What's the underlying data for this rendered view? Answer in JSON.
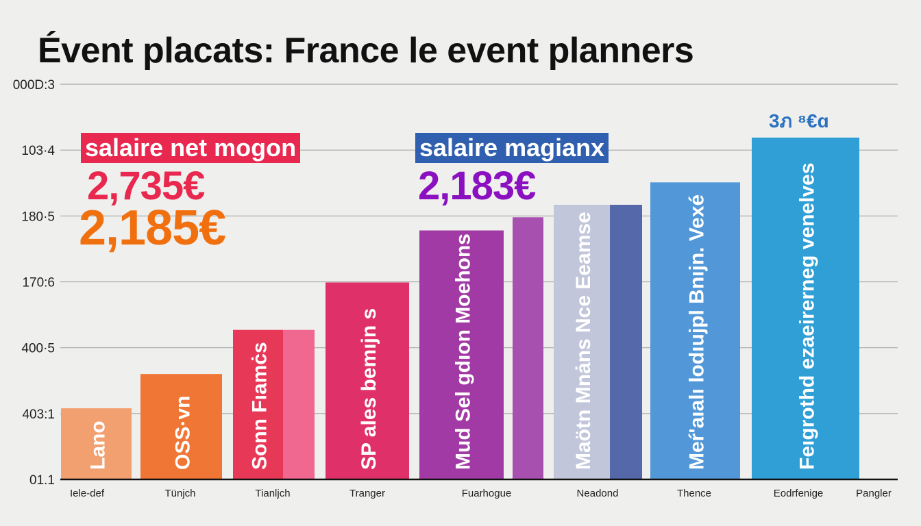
{
  "title": "Évent placats: France le event planners",
  "annotations": {
    "label_left": "salaire net mogon",
    "label_left_color": "#e8284e",
    "value_red": "2,735€",
    "value_red_color": "#e8284e",
    "value_orange": "2,185€",
    "value_orange_color": "#f07010",
    "label_right": "salaire magianx",
    "label_right_color": "#2f5fae",
    "value_purple": "2,183€",
    "value_purple_color": "#8a10c0",
    "top_bar_label": "3ภ ⁸€ɑ",
    "top_bar_label_color": "#2a72c0"
  },
  "chart_data": {
    "type": "bar",
    "title": "Évent placats: France le event planners",
    "xlabel": "",
    "ylabel": "",
    "ylim": [
      0,
      6
    ],
    "y_tick_labels": [
      "01.1",
      "403:1",
      "400·5",
      "170:6",
      "180·5",
      "103·4",
      "000D:3"
    ],
    "grid": true,
    "categories": [
      "Iele-def",
      "Tünjch",
      "Tianljch",
      "Tranger",
      "Fuarhogue",
      "Neadond",
      "Thence",
      "Eodrfenige",
      "Pangler"
    ],
    "values": [
      1.08,
      1.6,
      2.27,
      2.99,
      3.78,
      4.17,
      4.51,
      5.19,
      null
    ],
    "bar_labels": [
      "Lano",
      "OSS·vn",
      "Sonn Fıamċs",
      "SP ales bemıjn s",
      "Mud Sel gdıon Moehons",
      "Maötn Mnȧns Nce Eeamse",
      "Meŕ'aıalı lodıujpl Bnıjn. Vexé",
      "Feıgrothd ezaeirerneg venelves",
      ""
    ],
    "extra_bar": {
      "category": "Fuarhogue",
      "value": 3.98,
      "color": "#a850b0"
    },
    "colors": [
      "#f2a070",
      "#ef7634",
      "#e83858",
      "#e0306a",
      "#a23aa6",
      "#c2c6da",
      "#5298d8",
      "#2f9fd6"
    ],
    "secondary_colors": {
      "Tianljch": "#f06890",
      "Neadond": "#5468aa"
    }
  }
}
